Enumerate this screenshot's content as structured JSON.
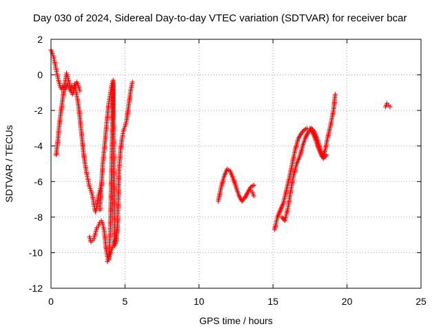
{
  "chart_data": {
    "type": "scatter",
    "title": "Day 030 of 2024, Sidereal Day-to-day VTEC variation (SDTVAR) for receiver bcar",
    "xlabel": "GPS time / hours",
    "ylabel": "SDTVAR / TECUs",
    "xlim": [
      0,
      25
    ],
    "ylim": [
      -12,
      2
    ],
    "x_ticks": [
      0,
      5,
      10,
      15,
      20,
      25
    ],
    "x_tick_labels": [
      "0",
      "5",
      "10",
      "15",
      "20",
      "25"
    ],
    "y_ticks": [
      2,
      0,
      -2,
      -4,
      -6,
      -8,
      -10,
      -12
    ],
    "y_tick_labels": [
      "2",
      "0",
      "-2",
      "-4",
      "-6",
      "-8",
      "-10",
      "-12"
    ],
    "grid": true,
    "legend": "none",
    "marker": "plus",
    "color": "#ff0000",
    "series": [
      {
        "x": [
          0.0,
          0.1,
          0.2,
          0.3,
          0.4,
          0.5,
          0.6,
          0.7,
          0.8,
          0.9,
          1.0,
          1.1,
          1.2,
          1.3,
          1.4,
          1.5,
          1.6,
          1.7,
          1.8,
          1.9,
          2.0,
          2.1,
          2.2,
          2.3,
          2.4,
          2.5,
          2.6,
          2.7,
          2.8,
          2.9,
          3.0,
          3.1,
          3.2,
          3.3,
          3.4
        ],
        "y": [
          1.4,
          1.2,
          0.9,
          0.5,
          0.1,
          -0.3,
          -0.6,
          -0.8,
          -0.6,
          -0.7,
          -0.8,
          -0.5,
          -0.7,
          -0.9,
          -0.6,
          -0.8,
          -0.5,
          -1.0,
          -1.4,
          -2.0,
          -2.8,
          -3.6,
          -4.4,
          -5.0,
          -5.5,
          -5.9,
          -6.3,
          -6.5,
          -6.8,
          -7.3,
          -7.7,
          -7.4,
          -6.8,
          -6.5,
          -6.2
        ]
      },
      {
        "x": [
          0.35,
          0.45,
          0.55,
          0.65,
          0.75,
          0.85,
          0.95,
          1.05,
          1.15,
          1.25,
          1.35,
          1.45,
          1.55,
          1.65,
          1.75,
          1.85,
          1.95
        ],
        "y": [
          -4.5,
          -3.8,
          -2.9,
          -2.2,
          -1.6,
          -1.0,
          -0.4,
          0.1,
          -0.2,
          -0.5,
          -0.8,
          -1.1,
          -0.9,
          -0.6,
          -0.4,
          -0.6,
          -0.9
        ]
      },
      {
        "x": [
          2.6,
          2.7,
          2.8,
          2.9,
          3.0,
          3.1,
          3.2,
          3.3,
          3.4,
          3.5,
          3.6,
          3.7,
          3.8,
          3.9,
          4.0,
          4.1,
          4.2
        ],
        "y": [
          -9.1,
          -9.4,
          -9.3,
          -9.2,
          -8.9,
          -8.6,
          -8.5,
          -8.3,
          -8.2,
          -8.4,
          -8.8,
          -9.6,
          -10.2,
          -10.4,
          -8.9,
          -5.0,
          -0.5
        ]
      },
      {
        "x": [
          3.3,
          3.4,
          3.5,
          3.6,
          3.7,
          3.8,
          3.9,
          4.0,
          4.1,
          4.2,
          4.3,
          4.4,
          4.5,
          4.6,
          4.7,
          4.8,
          4.9,
          5.0,
          5.1,
          5.2,
          5.3,
          5.4,
          5.5
        ],
        "y": [
          -7.6,
          -6.3,
          -5.0,
          -4.2,
          -3.3,
          -2.4,
          -1.6,
          -1.1,
          -0.6,
          -0.3,
          -9.6,
          -9.4,
          -8.4,
          -5.3,
          -4.2,
          -3.6,
          -3.1,
          -2.9,
          -2.6,
          -2.0,
          -1.4,
          -0.8,
          -0.4
        ]
      },
      {
        "x": [
          3.8,
          3.9,
          4.0,
          4.1,
          4.2,
          4.3,
          4.4,
          4.5
        ],
        "y": [
          -10.5,
          -10.3,
          -10.1,
          -9.8,
          -9.6,
          -9.4,
          -9.2,
          -8.5
        ]
      },
      {
        "x": [
          11.3,
          11.5,
          11.7,
          11.9,
          12.1,
          12.3,
          12.5,
          12.7,
          12.9,
          13.1,
          13.3,
          13.5,
          13.7
        ],
        "y": [
          -7.1,
          -6.3,
          -5.7,
          -5.3,
          -5.4,
          -5.8,
          -6.3,
          -6.8,
          -7.1,
          -6.9,
          -6.6,
          -6.3,
          -6.2
        ]
      },
      {
        "x": [
          13.5,
          13.6,
          13.7
        ],
        "y": [
          -6.5,
          -6.6,
          -6.8
        ]
      },
      {
        "x": [
          15.1,
          15.3,
          15.5,
          15.7,
          15.9,
          16.1,
          16.3,
          16.5,
          16.7,
          16.9,
          17.1,
          17.3,
          17.5,
          17.7,
          17.9,
          18.1,
          18.3,
          18.5,
          18.7,
          18.9,
          19.1,
          19.2
        ],
        "y": [
          -8.7,
          -8.0,
          -7.6,
          -7.2,
          -6.5,
          -5.8,
          -5.0,
          -4.2,
          -3.6,
          -3.3,
          -3.1,
          -3.0,
          -3.0,
          -3.3,
          -3.7,
          -4.2,
          -4.6,
          -4.3,
          -3.5,
          -2.8,
          -1.9,
          -1.1
        ]
      },
      {
        "x": [
          15.6,
          15.8,
          16.0,
          16.2,
          16.4,
          16.6,
          16.8,
          17.0,
          17.2,
          17.4,
          17.6,
          17.8,
          18.0,
          18.2,
          18.4,
          18.6
        ],
        "y": [
          -8.0,
          -8.2,
          -7.5,
          -6.5,
          -5.6,
          -5.0,
          -4.6,
          -4.0,
          -3.5,
          -3.2,
          -3.0,
          -3.2,
          -3.6,
          -4.2,
          -4.7,
          -4.5
        ]
      },
      {
        "x": [
          22.6,
          22.7,
          22.8,
          22.9
        ],
        "y": [
          -1.8,
          -1.6,
          -1.7,
          -1.8
        ]
      }
    ]
  }
}
